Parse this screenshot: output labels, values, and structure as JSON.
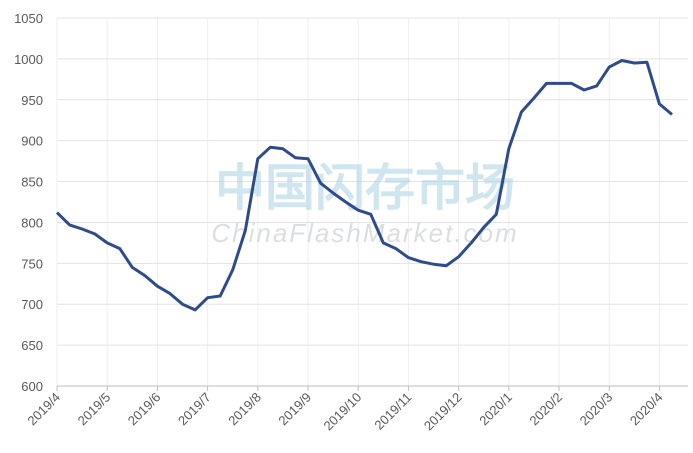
{
  "chart_data": {
    "type": "line",
    "watermark": [
      "中国闪存市场",
      "ChinaFlashMarket.com"
    ],
    "categories": [
      "2019/4",
      null,
      null,
      null,
      "2019/5",
      null,
      null,
      null,
      "2019/6",
      null,
      null,
      null,
      "2019/7",
      null,
      null,
      null,
      "2019/8",
      null,
      null,
      null,
      "2019/9",
      null,
      null,
      null,
      "2019/10",
      null,
      null,
      null,
      "2019/11",
      null,
      null,
      null,
      "2019/12",
      null,
      null,
      null,
      "2020/1",
      null,
      null,
      null,
      "2020/2",
      null,
      null,
      null,
      "2020/3",
      null,
      null,
      null,
      "2020/4",
      null
    ],
    "series": [
      {
        "color": "#2f4b8a",
        "values": [
          812,
          797,
          792,
          786,
          775,
          768,
          745,
          735,
          722,
          713,
          700,
          693,
          708,
          710,
          742,
          790,
          878,
          892,
          890,
          879,
          878,
          848,
          836,
          825,
          815,
          810,
          775,
          768,
          757,
          752,
          749,
          747,
          758,
          775,
          794,
          810,
          890,
          935,
          952,
          970,
          970,
          970,
          962,
          967,
          990,
          998,
          995,
          996,
          945,
          932
        ]
      }
    ],
    "ylim": [
      600,
      1050
    ],
    "yticks": [
      600,
      650,
      700,
      750,
      800,
      850,
      900,
      950,
      1000,
      1050
    ],
    "grid": true
  }
}
